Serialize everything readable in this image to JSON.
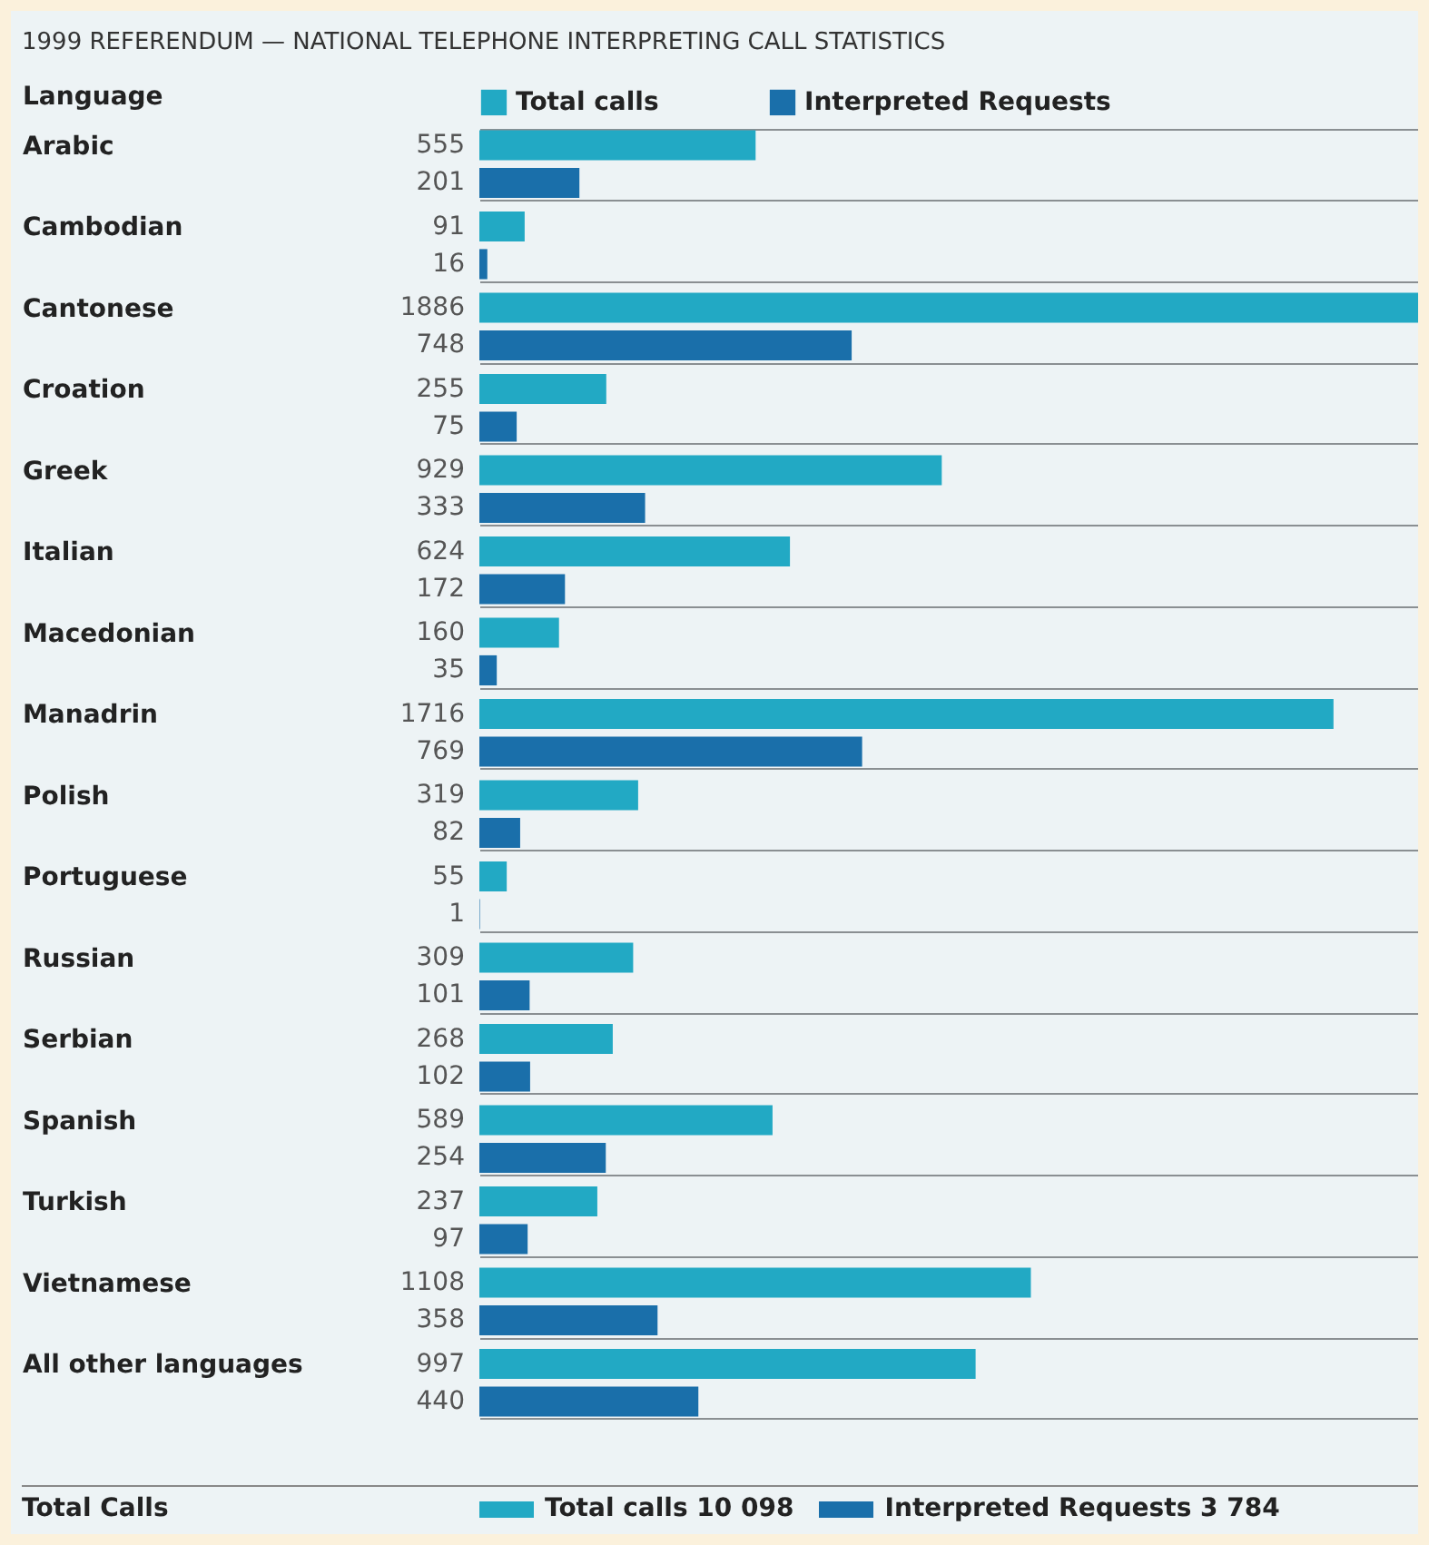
{
  "chart_data": {
    "type": "bar",
    "orientation": "horizontal",
    "title": "1999 REFERENDUM — NATIONAL TELEPHONE INTERPRETING CALL STATISTICS",
    "ylabel": "Language",
    "categories": [
      "Arabic",
      "Cambodian",
      "Cantonese",
      "Croation",
      "Greek",
      "Italian",
      "Macedonian",
      "Manadrin",
      "Polish",
      "Portuguese",
      "Russian",
      "Serbian",
      "Spanish",
      "Turkish",
      "Vietnamese",
      "All other languages"
    ],
    "series": [
      {
        "name": "Total calls",
        "color": "#22a9c4",
        "values": [
          555,
          91,
          1886,
          255,
          929,
          624,
          160,
          1716,
          319,
          55,
          309,
          268,
          589,
          237,
          1108,
          997
        ]
      },
      {
        "name": "Interpreted Requests",
        "color": "#1a6faa",
        "values": [
          201,
          16,
          748,
          75,
          333,
          172,
          35,
          769,
          82,
          1,
          101,
          102,
          254,
          97,
          358,
          440
        ]
      }
    ],
    "data_labels": true,
    "legend": "top",
    "grid": "y",
    "annotations": [
      "Total Calls",
      "Total calls 10 098",
      "Interpreted Requests 3 784"
    ]
  }
}
